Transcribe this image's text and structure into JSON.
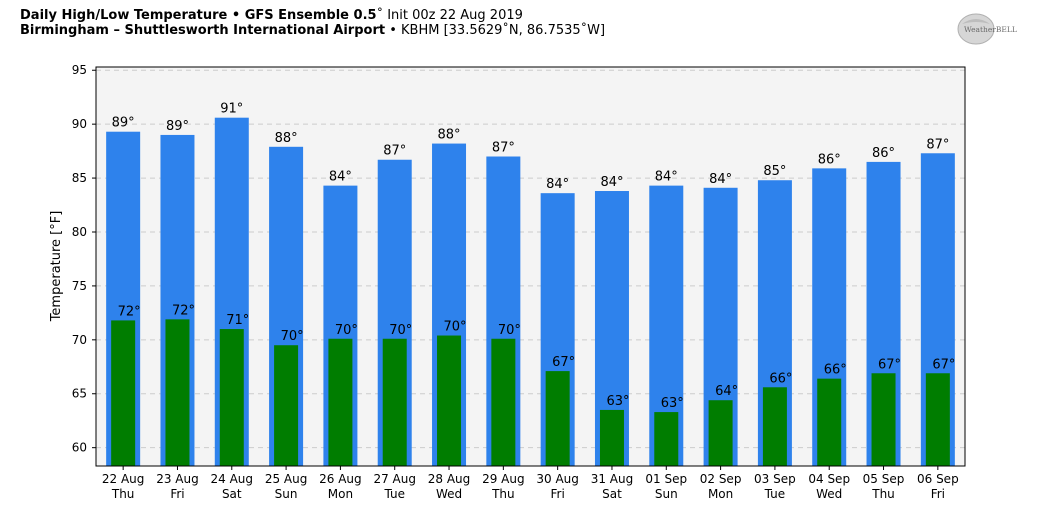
{
  "header": {
    "title_bold": "Daily High/Low Temperature • GFS Ensemble 0.5",
    "title_degree": "˚",
    "title_rest": " Init 00z 22 Aug 2019",
    "location_bold": "Birmingham – Shuttlesworth International Airport",
    "location_rest": " • KBHM [33.5629˚N, 86.7535˚W]"
  },
  "logo": {
    "text": "WeatherBELL"
  },
  "colors": {
    "high": "#2e82ec",
    "low": "#007d00",
    "plot_bg": "#f4f4f4"
  },
  "chart_data": {
    "type": "bar",
    "ylabel": "Temperature [°F]",
    "ylim": [
      58.3,
      95.3
    ],
    "yticks": [
      60,
      65,
      70,
      75,
      80,
      85,
      90,
      95
    ],
    "grid": true,
    "categories": [
      {
        "date": "22 Aug",
        "day": "Thu"
      },
      {
        "date": "23 Aug",
        "day": "Fri"
      },
      {
        "date": "24 Aug",
        "day": "Sat"
      },
      {
        "date": "25 Aug",
        "day": "Sun"
      },
      {
        "date": "26 Aug",
        "day": "Mon"
      },
      {
        "date": "27 Aug",
        "day": "Tue"
      },
      {
        "date": "28 Aug",
        "day": "Wed"
      },
      {
        "date": "29 Aug",
        "day": "Thu"
      },
      {
        "date": "30 Aug",
        "day": "Fri"
      },
      {
        "date": "31 Aug",
        "day": "Sat"
      },
      {
        "date": "01 Sep",
        "day": "Sun"
      },
      {
        "date": "02 Sep",
        "day": "Mon"
      },
      {
        "date": "03 Sep",
        "day": "Tue"
      },
      {
        "date": "04 Sep",
        "day": "Wed"
      },
      {
        "date": "05 Sep",
        "day": "Thu"
      },
      {
        "date": "06 Sep",
        "day": "Fri"
      }
    ],
    "series": [
      {
        "name": "High",
        "values": [
          89.3,
          89.0,
          90.6,
          87.9,
          84.3,
          86.7,
          88.2,
          87.0,
          83.6,
          83.8,
          84.3,
          84.1,
          84.8,
          85.9,
          86.5,
          87.3
        ],
        "labels": [
          "89°",
          "89°",
          "91°",
          "88°",
          "84°",
          "87°",
          "88°",
          "87°",
          "84°",
          "84°",
          "84°",
          "84°",
          "85°",
          "86°",
          "86°",
          "87°"
        ]
      },
      {
        "name": "Low",
        "values": [
          71.8,
          71.9,
          71.0,
          69.5,
          70.1,
          70.1,
          70.4,
          70.1,
          67.1,
          63.5,
          63.3,
          64.4,
          65.6,
          66.4,
          66.9,
          66.9
        ],
        "labels": [
          "72°",
          "72°",
          "71°",
          "70°",
          "70°",
          "70°",
          "70°",
          "70°",
          "67°",
          "63°",
          "63°",
          "64°",
          "66°",
          "66°",
          "67°",
          "67°"
        ]
      }
    ]
  }
}
